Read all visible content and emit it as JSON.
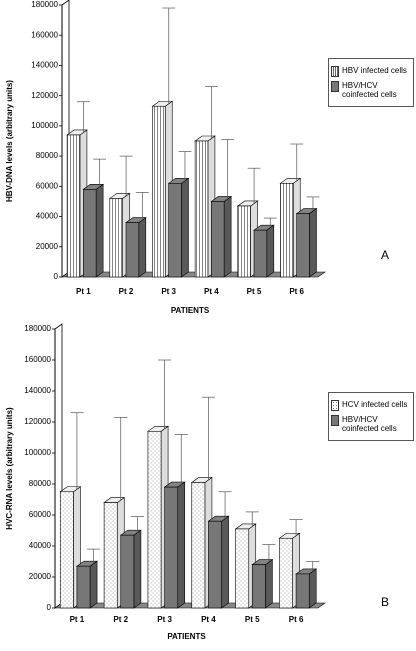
{
  "chart_data": [
    {
      "type": "bar3d",
      "label": "A",
      "ylabel": "HBV-DNA levels (arbitrary units)",
      "xlabel": "PATIENTS",
      "categories": [
        "Pt 1",
        "Pt 2",
        "Pt 3",
        "Pt 4",
        "Pt 5",
        "Pt 6"
      ],
      "ylim": [
        0,
        180000
      ],
      "yticks": [
        0,
        20000,
        40000,
        60000,
        80000,
        100000,
        120000,
        140000,
        160000,
        180000
      ],
      "series": [
        {
          "name": "HBV infected cells",
          "color": "#ffffff",
          "pattern": "vertical-stripes",
          "values": [
            94000,
            52000,
            113000,
            90000,
            47000,
            62000
          ],
          "errors": [
            22000,
            28000,
            65000,
            36000,
            25000,
            26000
          ]
        },
        {
          "name": "HBV/HCV coinfected cells",
          "color": "#777777",
          "pattern": "solid",
          "values": [
            58000,
            36000,
            62000,
            50000,
            31000,
            42000
          ],
          "errors": [
            20000,
            20000,
            21000,
            41000,
            8000,
            11000
          ]
        }
      ]
    },
    {
      "type": "bar3d",
      "label": "B",
      "ylabel": "HVC-RNA levels (arbitrary units)",
      "xlabel": "PATIENTS",
      "categories": [
        "Pt 1",
        "Pt 2",
        "Pt 3",
        "Pt 4",
        "Pt 5",
        "Pt 6"
      ],
      "ylim": [
        0,
        180000
      ],
      "yticks": [
        0,
        20000,
        40000,
        60000,
        80000,
        100000,
        120000,
        140000,
        160000,
        180000
      ],
      "series": [
        {
          "name": "HCV infected cells",
          "color": "#ffffff",
          "pattern": "dots",
          "values": [
            75000,
            68000,
            114000,
            81000,
            51000,
            45000
          ],
          "errors": [
            51000,
            55000,
            46000,
            55000,
            11000,
            12000
          ]
        },
        {
          "name": "HBV/HCV coinfected cells",
          "color": "#777777",
          "pattern": "solid",
          "values": [
            27000,
            47000,
            78000,
            56000,
            28000,
            22000
          ],
          "errors": [
            11000,
            12000,
            34000,
            19000,
            13000,
            8000
          ]
        }
      ]
    }
  ]
}
